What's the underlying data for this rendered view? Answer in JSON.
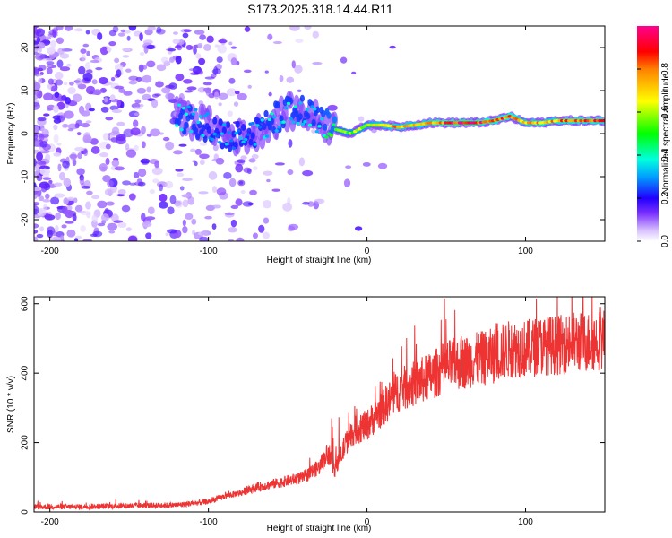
{
  "title": "S173.2025.318.14.44.R11",
  "chart_data": [
    {
      "type": "heatmap",
      "description_axis": "spectrogram",
      "xlabel": "Height of straight line (km)",
      "ylabel": "Frequency (Hz)",
      "xlim": [
        -210,
        150
      ],
      "ylim": [
        -25,
        25
      ],
      "xticks": [
        -200,
        -100,
        0,
        100
      ],
      "yticks": [
        -20,
        -10,
        0,
        10,
        20
      ],
      "colorbar": {
        "label": "Normalized spectral amplitude",
        "range": [
          0.0,
          1.0
        ],
        "ticks": [
          "0.0",
          "0.2",
          "0.4",
          "0.6",
          "0.8"
        ],
        "tick_values": [
          0.0,
          0.2,
          0.4,
          0.6,
          0.8
        ],
        "colors": [
          "#ffffff",
          "#b080ff",
          "#4000ff",
          "#0000ff",
          "#00ffff",
          "#00ff00",
          "#ffff00",
          "#ff0000",
          "#ff00a0"
        ]
      },
      "ridge": [
        {
          "x": -120,
          "y": 4,
          "amp": 0.35
        },
        {
          "x": -110,
          "y": 3,
          "amp": 0.35
        },
        {
          "x": -100,
          "y": 2,
          "amp": 0.3
        },
        {
          "x": -90,
          "y": 0,
          "amp": 0.3
        },
        {
          "x": -80,
          "y": -1,
          "amp": 0.3
        },
        {
          "x": -70,
          "y": 0,
          "amp": 0.3
        },
        {
          "x": -60,
          "y": 3,
          "amp": 0.35
        },
        {
          "x": -50,
          "y": 5,
          "amp": 0.35
        },
        {
          "x": -40,
          "y": 5,
          "amp": 0.35
        },
        {
          "x": -30,
          "y": 3,
          "amp": 0.35
        },
        {
          "x": -20,
          "y": 1,
          "amp": 0.5
        },
        {
          "x": -10,
          "y": 0,
          "amp": 0.55
        },
        {
          "x": 0,
          "y": 2,
          "amp": 0.6
        },
        {
          "x": 10,
          "y": 2,
          "amp": 0.7
        },
        {
          "x": 20,
          "y": 1.5,
          "amp": 0.75
        },
        {
          "x": 30,
          "y": 2,
          "amp": 0.7
        },
        {
          "x": 40,
          "y": 2.5,
          "amp": 0.75
        },
        {
          "x": 50,
          "y": 2.5,
          "amp": 0.85
        },
        {
          "x": 60,
          "y": 2.5,
          "amp": 0.95
        },
        {
          "x": 70,
          "y": 2.5,
          "amp": 0.9
        },
        {
          "x": 80,
          "y": 3,
          "amp": 0.8
        },
        {
          "x": 90,
          "y": 4,
          "amp": 0.85
        },
        {
          "x": 100,
          "y": 2.5,
          "amp": 0.7
        },
        {
          "x": 110,
          "y": 2.5,
          "amp": 0.75
        },
        {
          "x": 120,
          "y": 3,
          "amp": 0.75
        },
        {
          "x": 130,
          "y": 3,
          "amp": 0.8
        },
        {
          "x": 140,
          "y": 3,
          "amp": 0.8
        },
        {
          "x": 150,
          "y": 3,
          "amp": 0.8
        }
      ]
    },
    {
      "type": "line",
      "xlabel": "Height of straight line (km)",
      "ylabel": "SNR (10 * v/v)",
      "xlim": [
        -210,
        150
      ],
      "ylim": [
        0,
        620
      ],
      "xticks": [
        -200,
        -100,
        0,
        100
      ],
      "yticks": [
        0,
        200,
        400,
        600
      ],
      "color": "#ee3333",
      "series": [
        {
          "name": "SNR",
          "x": [
            -210,
            -180,
            -150,
            -120,
            -110,
            -100,
            -90,
            -80,
            -70,
            -60,
            -50,
            -40,
            -30,
            -25,
            -20,
            -15,
            -10,
            0,
            10,
            20,
            30,
            40,
            50,
            60,
            70,
            80,
            90,
            100,
            110,
            120,
            130,
            140,
            150
          ],
          "y": [
            15,
            15,
            18,
            20,
            25,
            30,
            45,
            55,
            70,
            80,
            90,
            100,
            130,
            170,
            120,
            180,
            230,
            250,
            300,
            350,
            370,
            390,
            420,
            430,
            440,
            450,
            470,
            470,
            480,
            480,
            490,
            490,
            500
          ]
        }
      ]
    }
  ]
}
